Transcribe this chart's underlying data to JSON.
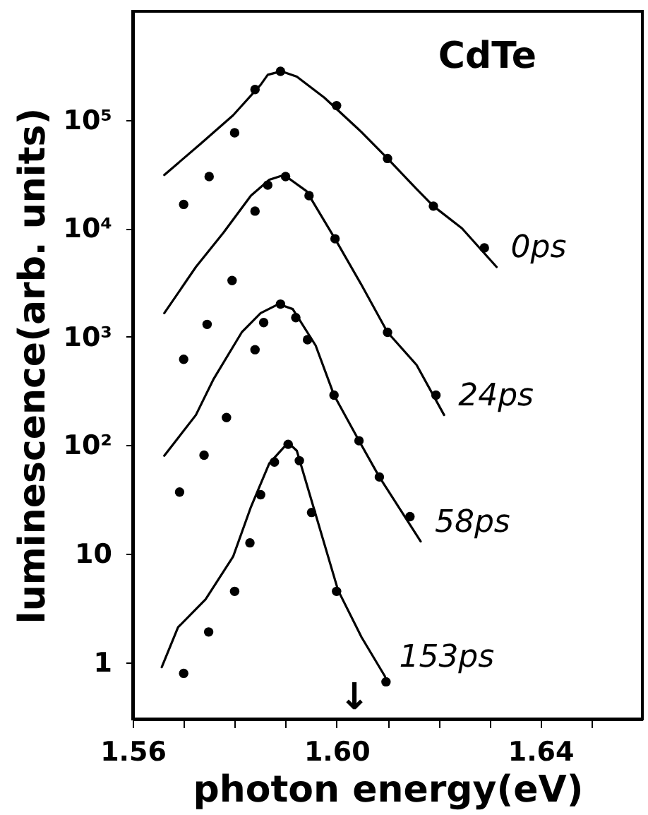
{
  "chart_data": {
    "type": "line",
    "title": "CdTe",
    "xlabel": "photon energy(eV)",
    "ylabel": "luminescence(arb. units)",
    "log": "y",
    "grid": false,
    "xlim": [
      1.56,
      1.66
    ],
    "ylim": [
      0.3,
      1000000
    ],
    "xticks": [
      1.56,
      {
        "value": 1.57,
        "label": null
      },
      {
        "value": 1.58,
        "label": null
      },
      {
        "value": 1.59,
        "label": null
      },
      {
        "value": 1.6,
        "label": "1.60"
      },
      {
        "value": 1.61,
        "label": null
      },
      {
        "value": 1.62,
        "label": null
      },
      {
        "value": 1.63,
        "label": null
      },
      1.64,
      {
        "value": 1.65,
        "label": null
      }
    ],
    "yticks": [
      1,
      10,
      {
        "value": 100,
        "label": "10²"
      },
      {
        "value": 1000,
        "label": "10³"
      },
      {
        "value": 10000,
        "label": "10⁴"
      },
      {
        "value": 100000,
        "label": "10⁵"
      }
    ],
    "annotations": [
      "↓"
    ],
    "series": [
      {
        "name": "0ps",
        "color": "#000000",
        "x": [
          1.5662,
          1.5733,
          1.5797,
          1.5851,
          1.5865,
          1.5892,
          1.5922,
          1.5976,
          1.6049,
          1.61,
          1.6157,
          1.619,
          1.6246,
          1.6314
        ],
        "values": [
          31000,
          60000,
          110000,
          210000,
          260000,
          280000,
          250000,
          160000,
          77000,
          44000,
          23000,
          16000,
          10000,
          4400
        ]
      },
      {
        "type": "scatter",
        "color": "#000000",
        "marker": "circle",
        "x": [
          1.57,
          1.575,
          1.58,
          1.584,
          1.589,
          1.6,
          1.61,
          1.619,
          1.629
        ],
        "values": [
          16600,
          30000,
          76000,
          190000,
          280000,
          135000,
          44000,
          16000,
          6600
        ]
      },
      {
        "name": "24ps",
        "color": "#000000",
        "x": [
          1.5662,
          1.5724,
          1.5778,
          1.5832,
          1.5868,
          1.5897,
          1.5941,
          1.5997,
          1.6049,
          1.61,
          1.6157,
          1.6211
        ],
        "values": [
          1650,
          4400,
          9100,
          20000,
          28000,
          31000,
          22000,
          8000,
          3000,
          1100,
          550,
          190
        ]
      },
      {
        "type": "scatter",
        "color": "#000000",
        "marker": "circle",
        "x": [
          1.57,
          1.5746,
          1.5795,
          1.584,
          1.5865,
          1.59,
          1.5946,
          1.5997,
          1.61,
          1.6195
        ],
        "values": [
          620,
          1300,
          3300,
          14400,
          25000,
          30000,
          20000,
          8000,
          1100,
          290
        ]
      },
      {
        "name": "58ps",
        "color": "#000000",
        "x": [
          1.5662,
          1.5724,
          1.5759,
          1.5814,
          1.5851,
          1.5886,
          1.5914,
          1.5959,
          1.5995,
          1.6044,
          1.6084,
          1.6165
        ],
        "values": [
          80,
          190,
          410,
          1100,
          1650,
          2000,
          1800,
          830,
          290,
          110,
          51,
          13
        ]
      },
      {
        "type": "scatter",
        "color": "#000000",
        "marker": "circle",
        "x": [
          1.5692,
          1.574,
          1.5784,
          1.584,
          1.5857,
          1.589,
          1.592,
          1.5943,
          1.5995,
          1.6044,
          1.6084,
          1.6144
        ],
        "values": [
          37,
          81,
          180,
          760,
          1350,
          2000,
          1500,
          940,
          290,
          110,
          51,
          22
        ]
      },
      {
        "name": "153ps",
        "color": "#000000",
        "x": [
          1.5657,
          1.5689,
          1.5743,
          1.5797,
          1.5832,
          1.5868,
          1.5905,
          1.5922,
          1.5959,
          1.6003,
          1.6049,
          1.6095
        ],
        "values": [
          0.9,
          2.1,
          3.8,
          9.4,
          27,
          68,
          106,
          89,
          23,
          4.6,
          1.7,
          0.74
        ]
      },
      {
        "type": "scatter",
        "color": "#000000",
        "marker": "circle",
        "x": [
          1.57,
          1.5749,
          1.58,
          1.583,
          1.5851,
          1.5878,
          1.5905,
          1.5927,
          1.5951,
          1.6,
          1.6097
        ],
        "values": [
          0.79,
          1.9,
          4.5,
          12.6,
          35,
          70,
          102,
          72,
          24,
          4.5,
          0.66
        ]
      }
    ]
  }
}
